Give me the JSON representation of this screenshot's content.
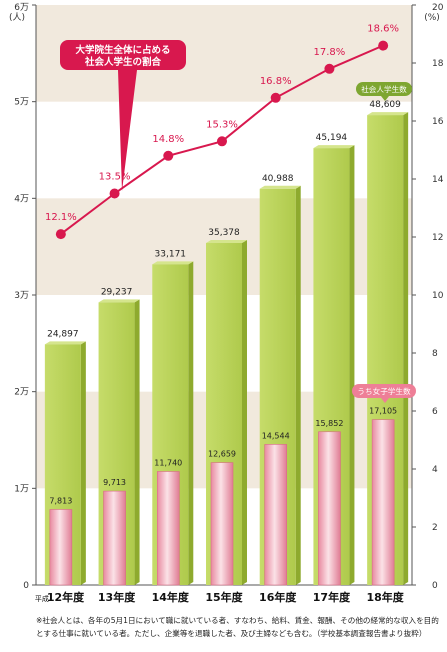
{
  "chart_data": {
    "type": "bar+line",
    "categories": [
      "平成12年度",
      "13年度",
      "14年度",
      "15年度",
      "16年度",
      "17年度",
      "18年度"
    ],
    "category_first_prefix": "平成",
    "category_labels": [
      "12年度",
      "13年度",
      "14年度",
      "15年度",
      "16年度",
      "17年度",
      "18年度"
    ],
    "left_axis": {
      "unit": "(人)",
      "range": [
        0,
        60000
      ],
      "ticks": [
        0,
        10000,
        20000,
        30000,
        40000,
        50000,
        60000
      ],
      "tick_labels": [
        "0",
        "1万",
        "2万",
        "3万",
        "4万",
        "5万",
        "6万"
      ]
    },
    "right_axis": {
      "unit": "(%)",
      "range": [
        0,
        20
      ],
      "ticks": [
        0,
        2,
        4,
        6,
        8,
        10,
        12,
        14,
        16,
        18,
        20
      ],
      "tick_labels": [
        "0",
        "2",
        "4",
        "6",
        "8",
        "10",
        "12",
        "14",
        "16",
        "18",
        "20"
      ]
    },
    "series": [
      {
        "name": "社会人学生数",
        "kind": "bar",
        "axis": "left",
        "values": [
          24897,
          29237,
          33171,
          35378,
          40988,
          45194,
          48609
        ],
        "labels": [
          "24,897",
          "29,237",
          "33,171",
          "35,378",
          "40,988",
          "45,194",
          "48,609"
        ]
      },
      {
        "name": "うち女子学生数",
        "kind": "bar",
        "axis": "left",
        "values": [
          7813,
          9713,
          11740,
          12659,
          14544,
          15852,
          17105
        ],
        "labels": [
          "7,813",
          "9,713",
          "11,740",
          "12,659",
          "14,544",
          "15,852",
          "17,105"
        ]
      },
      {
        "name": "大学院生全体に占める社会人学生の割合",
        "kind": "line",
        "axis": "right",
        "values": [
          12.1,
          13.5,
          14.8,
          15.3,
          16.8,
          17.8,
          18.6
        ],
        "labels": [
          "12.1%",
          "13.5%",
          "14.8%",
          "15.3%",
          "16.8%",
          "17.8%",
          "18.6%"
        ]
      }
    ],
    "callout": [
      "大学院生全体に占める",
      "社会人学生の割合"
    ],
    "legend_tags": [
      "社会人学生数",
      "うち女子学生数"
    ],
    "grid": "alternating horizontal bands",
    "colors": {
      "band": "#f1e9dd",
      "bar_green": "#b7cf55",
      "bar_green_side": "#8eaa2e",
      "bar_pink": "#f2b9c3",
      "line": "#d8184e",
      "callout_fill": "#d8184e",
      "tag_green": "#7ea631",
      "tag_pink": "#ee7f97"
    }
  },
  "footnote": "※社会人とは、各年の5月1日において職に就いている者、すなわち、給料、賃金、報酬、その他の経常的な収入を目的とする仕事に就いている者。ただし、企業等を退職した者、及び主婦なども含む。（学校基本調査報告書より抜粋）"
}
